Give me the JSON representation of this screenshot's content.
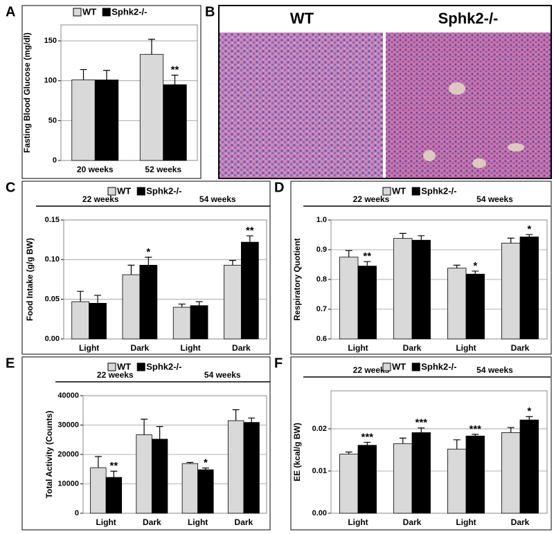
{
  "chart_data": [
    {
      "type": "bar",
      "panel": "A",
      "ylabel": "Fasting Blood Glucose (mg/dl)",
      "categories": [
        "20 weeks",
        "52 weeks"
      ],
      "ylim": [
        0,
        170
      ],
      "yticks": [
        0,
        50,
        100,
        150
      ],
      "grid": true,
      "series": [
        {
          "name": "WT",
          "color": "#d9d9d9",
          "values": [
            101,
            133
          ],
          "errors": [
            13,
            19
          ],
          "annotations": [
            null,
            null
          ]
        },
        {
          "name": "Sphk2-/-",
          "color": "#000000",
          "values": [
            101,
            95
          ],
          "errors": [
            12,
            12
          ],
          "annotations": [
            null,
            "**"
          ]
        }
      ]
    },
    {
      "type": "bar",
      "panel": "C",
      "ylabel": "Food Intake (g/g BW)",
      "groups": [
        "22 weeks",
        "54 weeks"
      ],
      "categories": [
        "Light",
        "Dark",
        "Light",
        "Dark"
      ],
      "ylim": [
        0,
        0.15
      ],
      "yticks": [
        {
          "value": 0,
          "label": "0.00"
        },
        {
          "value": 0.05,
          "label": "0.05"
        },
        {
          "value": 0.1,
          "label": "0.10"
        },
        {
          "value": 0.15,
          "label": "0.15"
        }
      ],
      "grid": true,
      "series": [
        {
          "name": "WT",
          "color": "#d9d9d9",
          "values": [
            0.047,
            0.081,
            0.04,
            0.093
          ],
          "errors": [
            0.013,
            0.012,
            0.004,
            0.006
          ],
          "annotations": [
            null,
            null,
            null,
            null
          ]
        },
        {
          "name": "Sphk2-/-",
          "color": "#000000",
          "values": [
            0.045,
            0.093,
            0.042,
            0.122
          ],
          "errors": [
            0.01,
            0.01,
            0.005,
            0.008
          ],
          "annotations": [
            null,
            "*",
            null,
            "**"
          ]
        }
      ]
    },
    {
      "type": "bar",
      "panel": "D",
      "ylabel": "Respiratory Quotient",
      "groups": [
        "22 weeks",
        "54 weeks"
      ],
      "categories": [
        "Light",
        "Dark",
        "Light",
        "Dark"
      ],
      "ylim": [
        0.6,
        1.0
      ],
      "yticks": [
        0.6,
        0.7,
        0.8,
        0.9,
        {
          "value": 1.0,
          "label": "1.0"
        }
      ],
      "grid": true,
      "series": [
        {
          "name": "WT",
          "color": "#d9d9d9",
          "values": [
            0.875,
            0.938,
            0.838,
            0.922
          ],
          "errors": [
            0.022,
            0.017,
            0.01,
            0.017
          ],
          "annotations": [
            null,
            null,
            null,
            null
          ]
        },
        {
          "name": "Sphk2-/-",
          "color": "#000000",
          "values": [
            0.845,
            0.932,
            0.818,
            0.943
          ],
          "errors": [
            0.015,
            0.015,
            0.01,
            0.008
          ],
          "annotations": [
            "**",
            null,
            "*",
            "*"
          ]
        }
      ]
    },
    {
      "type": "bar",
      "panel": "E",
      "ylabel": "Total Activity (Counts)",
      "groups": [
        "22 weeks",
        "54 weeks"
      ],
      "categories": [
        "Light",
        "Dark",
        "Light",
        "Dark"
      ],
      "ylim": [
        0,
        40000
      ],
      "yticks": [
        0,
        10000,
        20000,
        30000,
        40000
      ],
      "grid": true,
      "series": [
        {
          "name": "WT",
          "color": "#d9d9d9",
          "values": [
            15500,
            26700,
            16900,
            31500
          ],
          "errors": [
            3800,
            5300,
            400,
            3700
          ],
          "annotations": [
            null,
            null,
            null,
            null
          ]
        },
        {
          "name": "Sphk2-/-",
          "color": "#000000",
          "values": [
            12200,
            25200,
            14800,
            30900
          ],
          "errors": [
            2100,
            4300,
            600,
            1500
          ],
          "annotations": [
            "**",
            null,
            "*",
            null
          ]
        }
      ]
    },
    {
      "type": "bar",
      "panel": "F",
      "ylabel": "EE (kcal/g BW)",
      "groups": [
        "22 weeks",
        "54 weeks"
      ],
      "categories": [
        "Light",
        "Dark",
        "Light",
        "Dark"
      ],
      "ylim": [
        0,
        0.029
      ],
      "yticks": [
        {
          "value": 0,
          "label": "0.00"
        },
        0.01,
        0.02
      ],
      "grid": true,
      "series": [
        {
          "name": "WT",
          "color": "#d9d9d9",
          "values": [
            0.014,
            0.0165,
            0.0152,
            0.0191
          ],
          "errors": [
            0.0005,
            0.0013,
            0.0022,
            0.0012
          ],
          "annotations": [
            null,
            null,
            null,
            null
          ]
        },
        {
          "name": "Sphk2-/-",
          "color": "#000000",
          "values": [
            0.0161,
            0.0191,
            0.0183,
            0.0221
          ],
          "errors": [
            0.0007,
            0.0011,
            0.0004,
            0.0008
          ],
          "annotations": [
            "***",
            "***",
            "***",
            "*"
          ]
        }
      ]
    }
  ],
  "image_panel": {
    "panel": "B",
    "labels": [
      "WT",
      "Sphk2-/-"
    ]
  }
}
